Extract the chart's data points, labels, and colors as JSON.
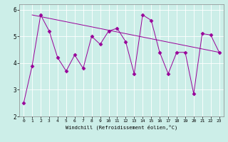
{
  "xlabel": "Windchill (Refroidissement éolien,°C)",
  "background_color": "#cceee8",
  "line_color": "#990099",
  "hours": [
    0,
    1,
    2,
    3,
    4,
    5,
    6,
    7,
    8,
    9,
    10,
    11,
    12,
    13,
    14,
    15,
    16,
    17,
    18,
    19,
    20,
    21,
    22,
    23
  ],
  "y_main": [
    2.5,
    3.9,
    5.8,
    5.2,
    4.2,
    3.7,
    4.3,
    3.8,
    5.0,
    4.7,
    5.2,
    5.3,
    4.8,
    3.6,
    5.8,
    5.6,
    4.4,
    3.6,
    4.4,
    4.4,
    2.85,
    5.1,
    5.05,
    4.4
  ],
  "ylim": [
    2.0,
    6.2
  ],
  "xlim": [
    -0.5,
    23.5
  ],
  "yticks": [
    2,
    3,
    4,
    5,
    6
  ],
  "xticks": [
    0,
    1,
    2,
    3,
    4,
    5,
    6,
    7,
    8,
    9,
    10,
    11,
    12,
    13,
    14,
    15,
    16,
    17,
    18,
    19,
    20,
    21,
    22,
    23
  ]
}
